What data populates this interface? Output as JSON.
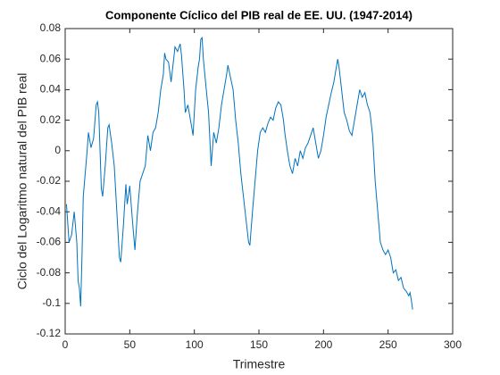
{
  "chart_data": {
    "type": "line",
    "title": "Componente Cíclico del PIB real de EE. UU. (1947-2014)",
    "xlabel": "Trimestre",
    "ylabel": "Ciclo del Logaritmo natural del PIB real",
    "xlim": [
      0,
      300
    ],
    "xticks": [
      0,
      50,
      100,
      150,
      200,
      250,
      300
    ],
    "ylim": [
      -0.12,
      0.08
    ],
    "yticks": [
      -0.12,
      -0.1,
      -0.08,
      -0.06,
      -0.04,
      -0.02,
      0,
      0.02,
      0.04,
      0.06,
      0.08
    ],
    "grid": false,
    "series": [
      {
        "color": "#0072bd",
        "x": [
          1,
          3,
          5,
          7,
          9,
          10,
          11,
          12,
          13,
          14,
          15,
          17,
          18,
          20,
          22,
          24,
          25,
          26,
          28,
          29,
          31,
          33,
          34,
          36,
          38,
          40,
          42,
          43,
          45,
          47,
          48,
          50,
          52,
          54,
          56,
          58,
          60,
          62,
          64,
          66,
          68,
          70,
          72,
          74,
          76,
          77,
          78,
          80,
          82,
          84,
          85,
          87,
          89,
          90,
          92,
          93,
          95,
          97,
          99,
          101,
          103,
          104,
          105,
          106,
          107,
          109,
          111,
          113,
          115,
          117,
          119,
          121,
          123,
          125,
          126,
          128,
          130,
          132,
          134,
          136,
          138,
          140,
          142,
          143,
          145,
          147,
          149,
          151,
          153,
          155,
          157,
          159,
          161,
          163,
          165,
          167,
          169,
          170,
          172,
          174,
          176,
          178,
          180,
          182,
          184,
          186,
          188,
          190,
          192,
          194,
          196,
          198,
          200,
          202,
          204,
          206,
          208,
          210,
          211,
          212,
          214,
          216,
          218,
          220,
          222,
          224,
          226,
          228,
          230,
          232,
          234,
          236,
          238,
          240,
          242,
          244,
          246,
          248,
          250,
          252,
          254,
          256,
          258,
          260,
          262,
          264,
          266,
          267,
          268,
          269
        ],
        "values": [
          -0.035,
          -0.06,
          -0.055,
          -0.04,
          -0.06,
          -0.085,
          -0.09,
          -0.102,
          -0.07,
          -0.03,
          -0.02,
          0.0,
          0.012,
          0.002,
          0.008,
          0.03,
          0.032,
          0.025,
          -0.025,
          -0.03,
          -0.01,
          0.015,
          0.017,
          0.005,
          -0.01,
          -0.04,
          -0.07,
          -0.073,
          -0.05,
          -0.022,
          -0.035,
          -0.023,
          -0.045,
          -0.065,
          -0.04,
          -0.02,
          -0.015,
          -0.01,
          0.01,
          0.0,
          0.012,
          0.015,
          0.025,
          0.04,
          0.05,
          0.064,
          0.06,
          0.058,
          0.045,
          0.06,
          0.068,
          0.065,
          0.07,
          0.063,
          0.04,
          0.025,
          0.03,
          0.02,
          0.01,
          0.04,
          0.055,
          0.06,
          0.073,
          0.074,
          0.06,
          0.042,
          0.025,
          -0.01,
          0.012,
          0.005,
          0.015,
          0.03,
          0.04,
          0.05,
          0.056,
          0.048,
          0.04,
          0.02,
          0.005,
          -0.015,
          -0.03,
          -0.045,
          -0.06,
          -0.062,
          -0.04,
          -0.02,
          0.0,
          0.012,
          0.015,
          0.012,
          0.018,
          0.022,
          0.02,
          0.028,
          0.032,
          0.03,
          0.02,
          0.012,
          0.0,
          -0.01,
          -0.015,
          -0.005,
          -0.01,
          0.0,
          -0.005,
          0.002,
          0.005,
          0.01,
          0.015,
          0.005,
          -0.005,
          0.0,
          0.01,
          0.022,
          0.03,
          0.038,
          0.045,
          0.055,
          0.06,
          0.055,
          0.04,
          0.025,
          0.02,
          0.013,
          0.01,
          0.02,
          0.03,
          0.04,
          0.035,
          0.038,
          0.03,
          0.025,
          0.01,
          -0.02,
          -0.04,
          -0.06,
          -0.065,
          -0.068,
          -0.065,
          -0.07,
          -0.08,
          -0.078,
          -0.085,
          -0.083,
          -0.09,
          -0.092,
          -0.095,
          -0.093,
          -0.098,
          -0.104
        ]
      }
    ]
  }
}
